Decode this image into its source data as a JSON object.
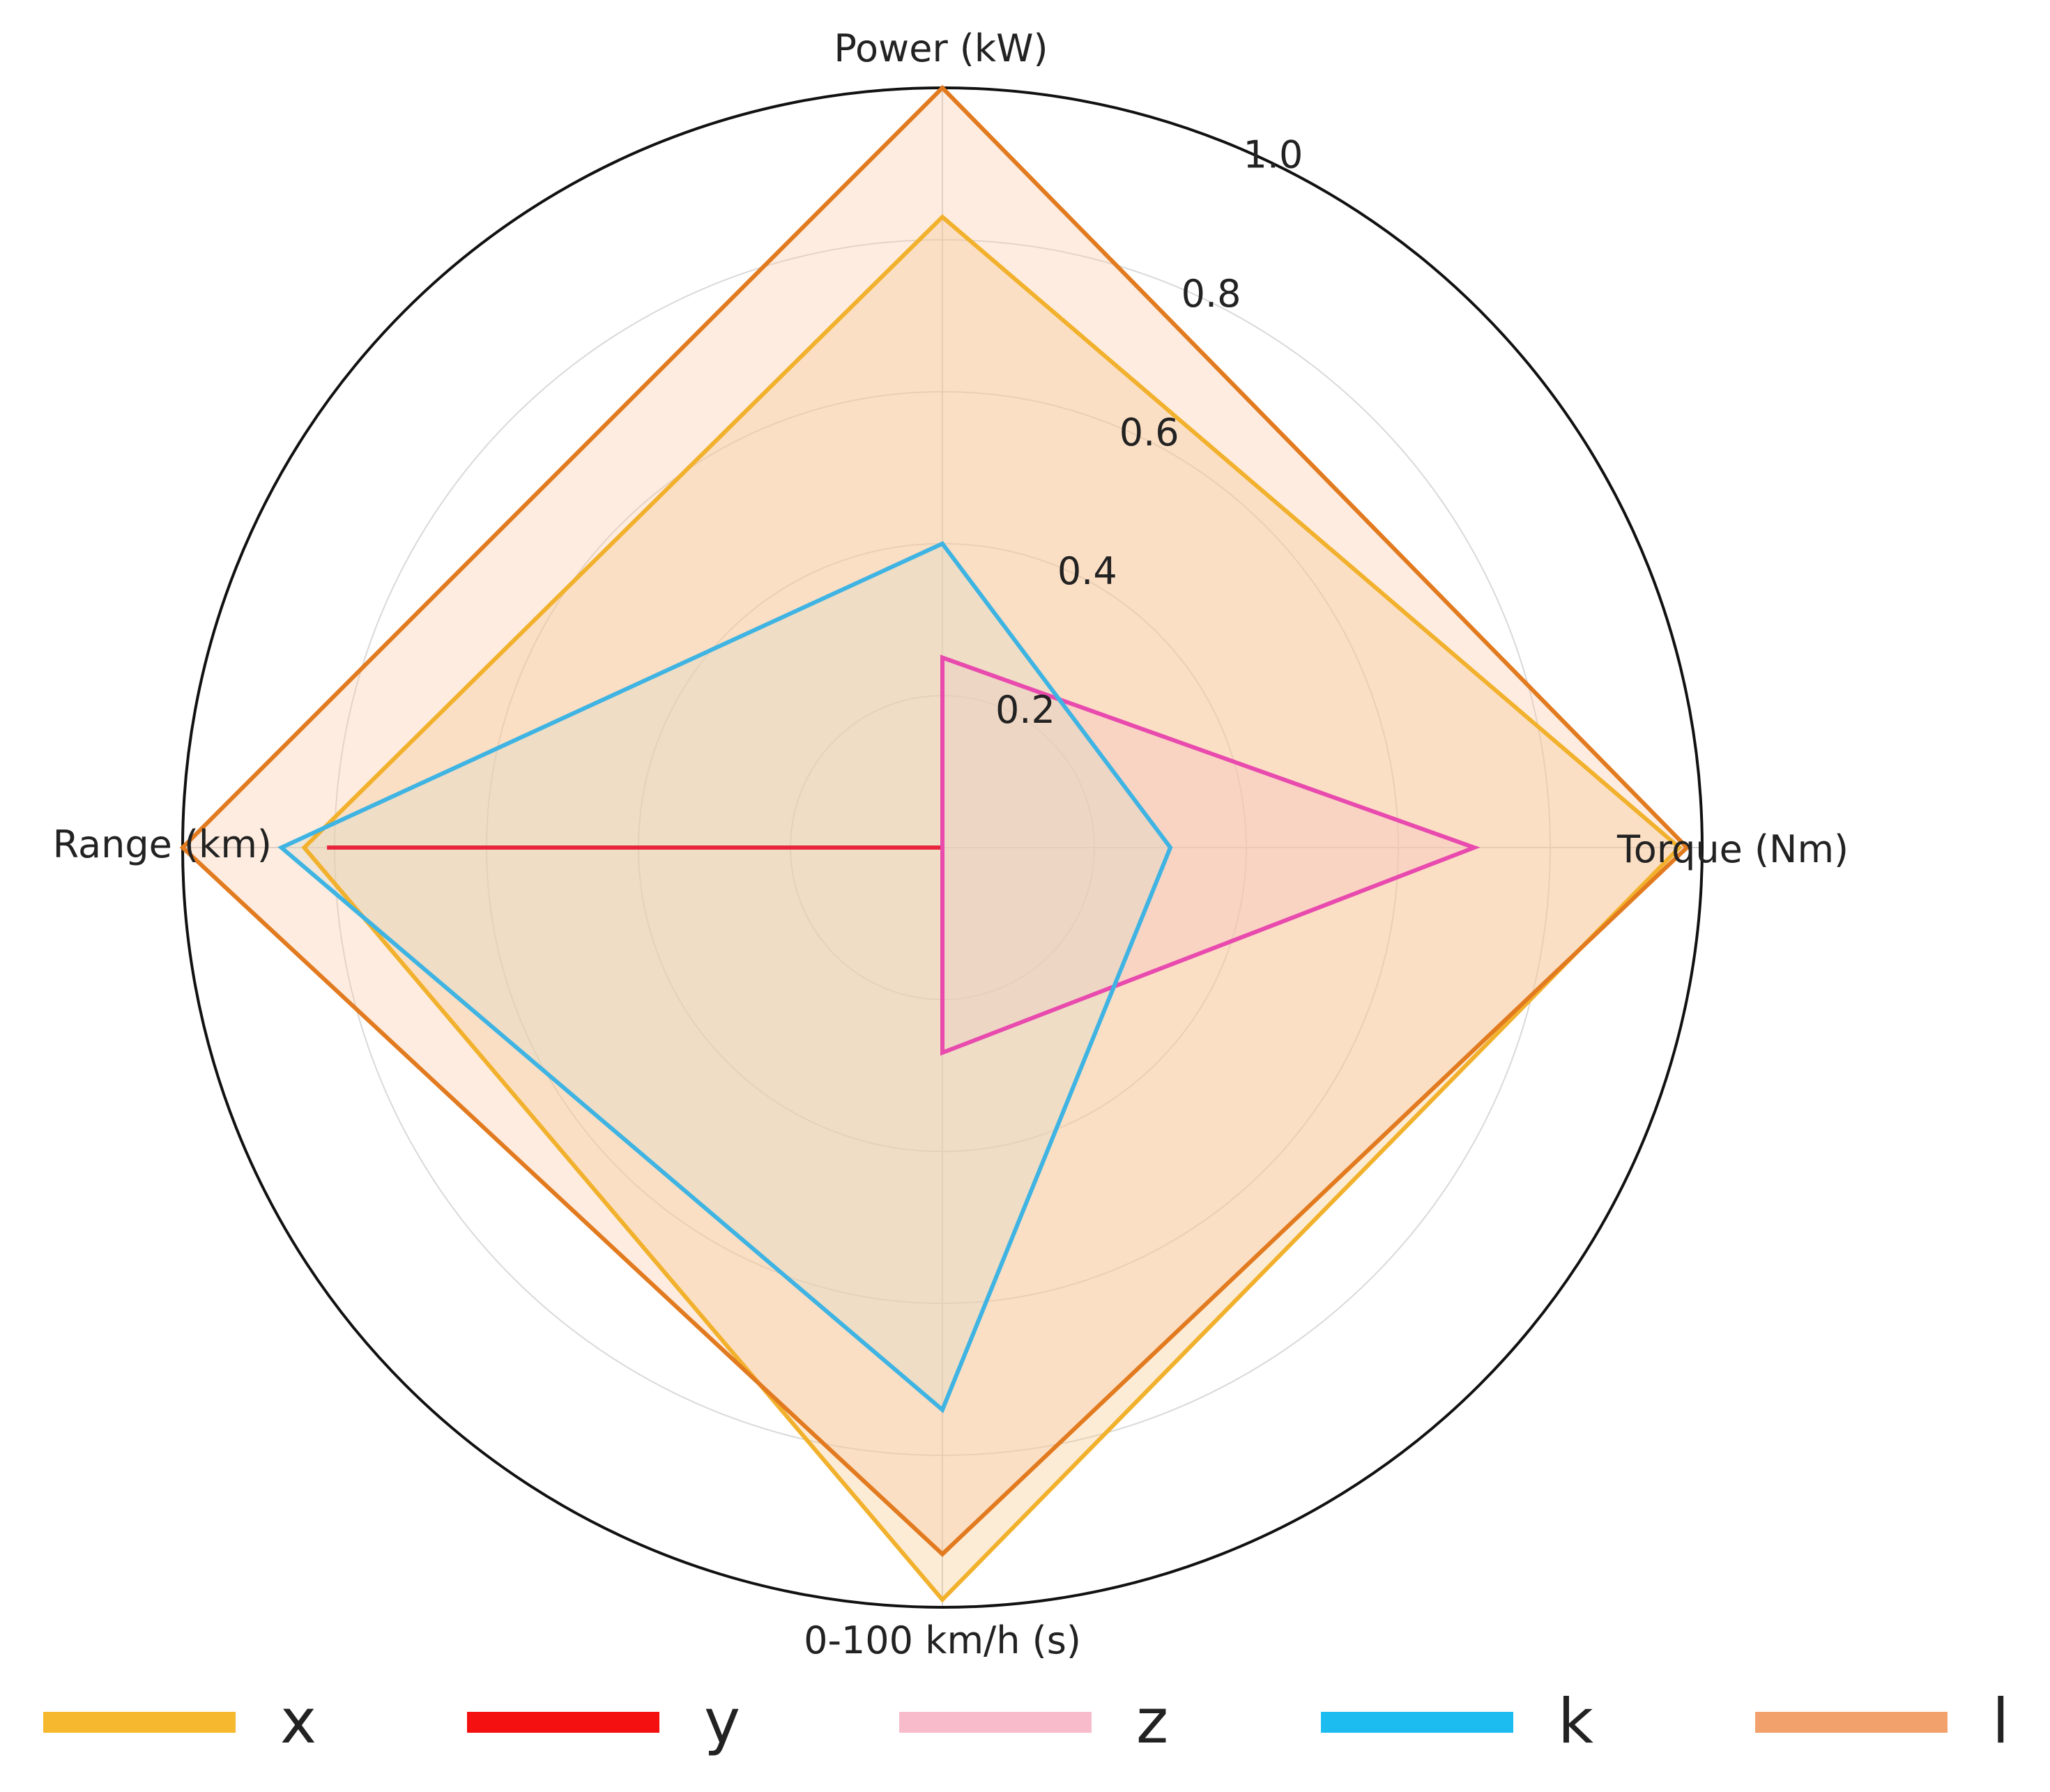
{
  "chart_data": {
    "type": "radar",
    "axes": [
      "Power (kW)",
      "Torque (Nm)",
      "0-100 km/h (s)",
      "Range (km)"
    ],
    "radial_ticks": [
      "0.2",
      "0.4",
      "0.6",
      "0.8",
      "1.0"
    ],
    "rlim": [
      0,
      1.0
    ],
    "grid": true,
    "legend_position": "bottom",
    "series": [
      {
        "name": "x",
        "values": [
          0.83,
          0.97,
          0.99,
          0.84
        ],
        "color": "#F2B12D",
        "fill": "#F6C98A"
      },
      {
        "name": "y",
        "values": [
          0.0,
          0.0,
          0.0,
          0.81
        ],
        "color": "#E8253D",
        "fill": "none"
      },
      {
        "name": "z",
        "values": [
          0.25,
          0.7,
          0.27,
          0.0
        ],
        "color": "#E84AAE",
        "fill": "#F3BCD5"
      },
      {
        "name": "k",
        "values": [
          0.4,
          0.3,
          0.74,
          0.87
        ],
        "color": "#3FB4E3",
        "fill": "#C9E3D9"
      },
      {
        "name": "l",
        "values": [
          1.0,
          0.98,
          0.93,
          1.0
        ],
        "color": "#E27A1F",
        "fill": "#F9C9A2"
      }
    ],
    "legend_colors": [
      "#F5B82E",
      "#F40F10",
      "#F8BBCB",
      "#1CBCF0",
      "#F3A16C"
    ]
  }
}
